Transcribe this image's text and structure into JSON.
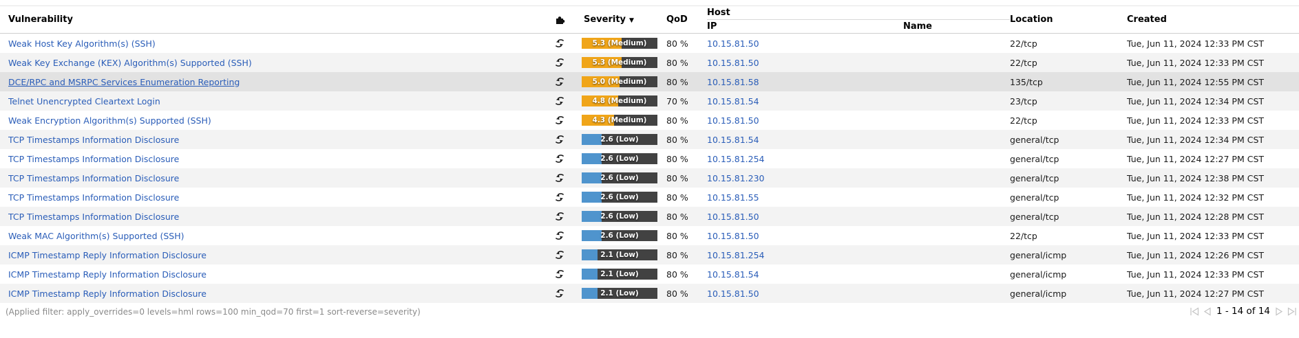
{
  "theme": {
    "severity_medium_color": "#F0A519",
    "severity_low_color": "#4F94CD",
    "severity_track_color": "#424242",
    "link_color": "#2a5db8"
  },
  "header": {
    "vulnerability": "Vulnerability",
    "solution_type_icon": "puzzle-icon",
    "severity": "Severity",
    "sort_indicator": "▼",
    "qod": "QoD",
    "host": "Host",
    "ip": "IP",
    "name": "Name",
    "location": "Location",
    "created": "Created"
  },
  "rows": [
    {
      "name": "Weak Host Key Algorithm(s) (SSH)",
      "severity": 5.3,
      "severity_level": "medium",
      "severity_text": "5.3 (Medium)",
      "qod": "80 %",
      "ip": "10.15.81.50",
      "host_name": "",
      "location": "22/tcp",
      "created": "Tue, Jun 11, 2024 12:33 PM CST",
      "highlighted": false
    },
    {
      "name": "Weak Key Exchange (KEX) Algorithm(s) Supported (SSH)",
      "severity": 5.3,
      "severity_level": "medium",
      "severity_text": "5.3 (Medium)",
      "qod": "80 %",
      "ip": "10.15.81.50",
      "host_name": "",
      "location": "22/tcp",
      "created": "Tue, Jun 11, 2024 12:33 PM CST",
      "highlighted": false
    },
    {
      "name": "DCE/RPC and MSRPC Services Enumeration Reporting",
      "severity": 5.0,
      "severity_level": "medium",
      "severity_text": "5.0 (Medium)",
      "qod": "80 %",
      "ip": "10.15.81.58",
      "host_name": "",
      "location": "135/tcp",
      "created": "Tue, Jun 11, 2024 12:55 PM CST",
      "highlighted": true
    },
    {
      "name": "Telnet Unencrypted Cleartext Login",
      "severity": 4.8,
      "severity_level": "medium",
      "severity_text": "4.8 (Medium)",
      "qod": "70 %",
      "ip": "10.15.81.54",
      "host_name": "",
      "location": "23/tcp",
      "created": "Tue, Jun 11, 2024 12:34 PM CST",
      "highlighted": false
    },
    {
      "name": "Weak Encryption Algorithm(s) Supported (SSH)",
      "severity": 4.3,
      "severity_level": "medium",
      "severity_text": "4.3 (Medium)",
      "qod": "80 %",
      "ip": "10.15.81.50",
      "host_name": "",
      "location": "22/tcp",
      "created": "Tue, Jun 11, 2024 12:33 PM CST",
      "highlighted": false
    },
    {
      "name": "TCP Timestamps Information Disclosure",
      "severity": 2.6,
      "severity_level": "low",
      "severity_text": "2.6 (Low)",
      "qod": "80 %",
      "ip": "10.15.81.54",
      "host_name": "",
      "location": "general/tcp",
      "created": "Tue, Jun 11, 2024 12:34 PM CST",
      "highlighted": false
    },
    {
      "name": "TCP Timestamps Information Disclosure",
      "severity": 2.6,
      "severity_level": "low",
      "severity_text": "2.6 (Low)",
      "qod": "80 %",
      "ip": "10.15.81.254",
      "host_name": "",
      "location": "general/tcp",
      "created": "Tue, Jun 11, 2024 12:27 PM CST",
      "highlighted": false
    },
    {
      "name": "TCP Timestamps Information Disclosure",
      "severity": 2.6,
      "severity_level": "low",
      "severity_text": "2.6 (Low)",
      "qod": "80 %",
      "ip": "10.15.81.230",
      "host_name": "",
      "location": "general/tcp",
      "created": "Tue, Jun 11, 2024 12:38 PM CST",
      "highlighted": false
    },
    {
      "name": "TCP Timestamps Information Disclosure",
      "severity": 2.6,
      "severity_level": "low",
      "severity_text": "2.6 (Low)",
      "qod": "80 %",
      "ip": "10.15.81.55",
      "host_name": "",
      "location": "general/tcp",
      "created": "Tue, Jun 11, 2024 12:32 PM CST",
      "highlighted": false
    },
    {
      "name": "TCP Timestamps Information Disclosure",
      "severity": 2.6,
      "severity_level": "low",
      "severity_text": "2.6 (Low)",
      "qod": "80 %",
      "ip": "10.15.81.50",
      "host_name": "",
      "location": "general/tcp",
      "created": "Tue, Jun 11, 2024 12:28 PM CST",
      "highlighted": false
    },
    {
      "name": "Weak MAC Algorithm(s) Supported (SSH)",
      "severity": 2.6,
      "severity_level": "low",
      "severity_text": "2.6 (Low)",
      "qod": "80 %",
      "ip": "10.15.81.50",
      "host_name": "",
      "location": "22/tcp",
      "created": "Tue, Jun 11, 2024 12:33 PM CST",
      "highlighted": false
    },
    {
      "name": "ICMP Timestamp Reply Information Disclosure",
      "severity": 2.1,
      "severity_level": "low",
      "severity_text": "2.1 (Low)",
      "qod": "80 %",
      "ip": "10.15.81.254",
      "host_name": "",
      "location": "general/icmp",
      "created": "Tue, Jun 11, 2024 12:26 PM CST",
      "highlighted": false
    },
    {
      "name": "ICMP Timestamp Reply Information Disclosure",
      "severity": 2.1,
      "severity_level": "low",
      "severity_text": "2.1 (Low)",
      "qod": "80 %",
      "ip": "10.15.81.54",
      "host_name": "",
      "location": "general/icmp",
      "created": "Tue, Jun 11, 2024 12:33 PM CST",
      "highlighted": false
    },
    {
      "name": "ICMP Timestamp Reply Information Disclosure",
      "severity": 2.1,
      "severity_level": "low",
      "severity_text": "2.1 (Low)",
      "qod": "80 %",
      "ip": "10.15.81.50",
      "host_name": "",
      "location": "general/icmp",
      "created": "Tue, Jun 11, 2024 12:27 PM CST",
      "highlighted": false
    }
  ],
  "footer": {
    "filter_note": "(Applied filter: apply_overrides=0 levels=hml rows=100 min_qod=70 first=1 sort-reverse=severity)",
    "pagination_counter": "1 - 14 of 14"
  }
}
